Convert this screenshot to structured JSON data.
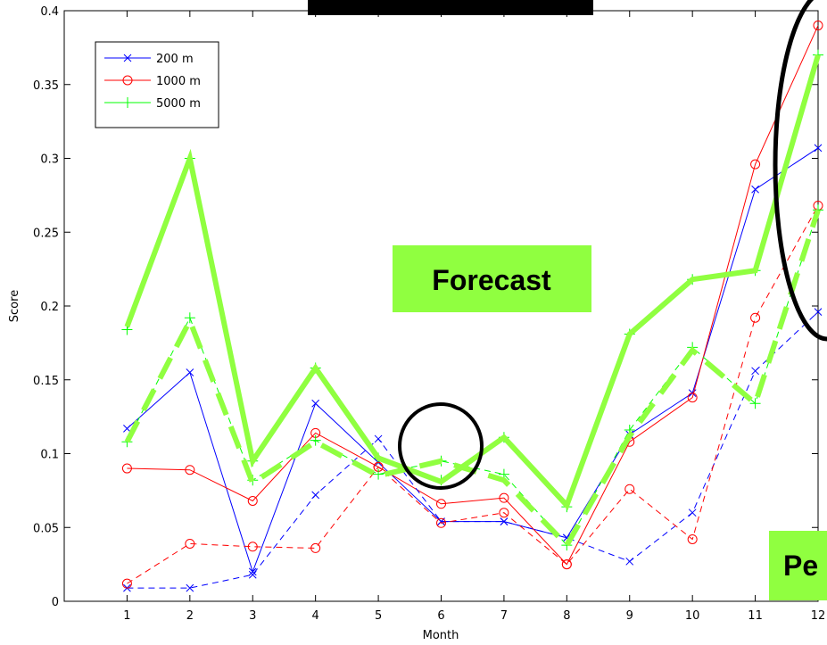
{
  "chart_data": {
    "type": "line",
    "xlabel": "Month",
    "ylabel": "Score",
    "xlim": [
      0,
      12
    ],
    "ylim": [
      0,
      0.4
    ],
    "x_ticks": [
      1,
      2,
      3,
      4,
      5,
      6,
      7,
      8,
      9,
      10,
      11,
      12
    ],
    "y_ticks": [
      0,
      0.05,
      0.1,
      0.15,
      0.2,
      0.25,
      0.3,
      0.35,
      0.4
    ],
    "y_tick_labels": [
      "0",
      "0.05",
      "0.1",
      "0.15",
      "0.2",
      "0.25",
      "0.3",
      "0.35",
      "0.4"
    ],
    "legend_position": "top-left",
    "legend": [
      {
        "label": "200 m",
        "color": "#0000ff",
        "marker": "x"
      },
      {
        "label": "1000 m",
        "color": "#ff0000",
        "marker": "o"
      },
      {
        "label": "5000 m",
        "color": "#00ff00",
        "marker": "+"
      }
    ],
    "series": [
      {
        "name": "200 m",
        "style": "solid",
        "color": "#0000ff",
        "marker": "x",
        "x": [
          1,
          2,
          3,
          4,
          5,
          6,
          7,
          8,
          9,
          10,
          11,
          12
        ],
        "values": [
          0.117,
          0.155,
          0.02,
          0.134,
          0.094,
          0.054,
          0.054,
          0.043,
          0.113,
          0.141,
          0.279,
          0.307
        ]
      },
      {
        "name": "1000 m",
        "style": "solid",
        "color": "#ff0000",
        "marker": "o",
        "x": [
          1,
          2,
          3,
          4,
          5,
          6,
          7,
          8,
          9,
          10,
          11,
          12
        ],
        "values": [
          0.09,
          0.089,
          0.068,
          0.114,
          0.091,
          0.066,
          0.07,
          0.025,
          0.108,
          0.138,
          0.296,
          0.39
        ]
      },
      {
        "name": "5000 m",
        "style": "solid",
        "color": "#00ff00",
        "marker": "+",
        "x": [
          1,
          2,
          3,
          4,
          5,
          6,
          7,
          8,
          9,
          10,
          11,
          12
        ],
        "values": [
          0.184,
          0.3,
          0.095,
          0.158,
          0.097,
          0.082,
          0.111,
          0.064,
          0.181,
          0.218,
          0.224,
          0.37
        ]
      },
      {
        "style": "dashed",
        "color": "#0000ff",
        "marker": "x",
        "x": [
          1,
          2,
          3,
          4,
          5,
          6,
          7,
          8,
          9,
          10,
          11,
          12
        ],
        "values": [
          0.009,
          0.009,
          0.018,
          0.072,
          0.11,
          0.054,
          0.054,
          0.043,
          0.027,
          0.06,
          0.156,
          0.196
        ]
      },
      {
        "style": "dashed",
        "color": "#ff0000",
        "marker": "o",
        "x": [
          1,
          2,
          3,
          4,
          5,
          6,
          7,
          8,
          9,
          10,
          11,
          12
        ],
        "values": [
          0.012,
          0.039,
          0.037,
          0.036,
          0.091,
          0.053,
          0.06,
          0.025,
          0.076,
          0.042,
          0.192,
          0.268
        ]
      },
      {
        "style": "dashed",
        "color": "#00ff00",
        "marker": "+",
        "x": [
          1,
          2,
          3,
          4,
          5,
          6,
          7,
          8,
          9,
          10,
          11,
          12
        ],
        "values": [
          0.108,
          0.192,
          0.082,
          0.109,
          0.086,
          0.095,
          0.086,
          0.038,
          0.116,
          0.172,
          0.134,
          0.265
        ]
      }
    ],
    "overlay_lines": [
      {
        "style": "solid",
        "color": "#90ff40",
        "x": [
          1,
          2,
          3,
          4,
          5,
          6,
          7,
          8,
          9,
          10,
          11,
          12
        ],
        "values": [
          0.186,
          0.3,
          0.095,
          0.158,
          0.097,
          0.081,
          0.111,
          0.065,
          0.181,
          0.218,
          0.224,
          0.37
        ]
      },
      {
        "style": "dashed",
        "color": "#90ff40",
        "x": [
          1,
          2,
          3,
          4,
          5,
          6,
          7,
          8,
          9,
          10,
          11,
          12
        ],
        "values": [
          0.108,
          0.19,
          0.08,
          0.108,
          0.085,
          0.095,
          0.082,
          0.038,
          0.112,
          0.17,
          0.134,
          0.265
        ]
      }
    ],
    "annotations": {
      "forecast_label": "Forecast",
      "persistence_label": "Pe",
      "label_color": "#90ff40"
    }
  }
}
